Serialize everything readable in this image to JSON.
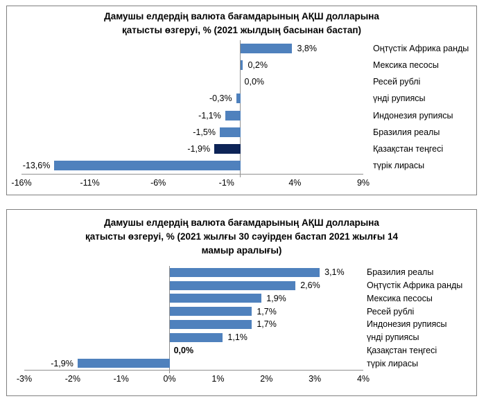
{
  "colors": {
    "bar": "#4f81bd",
    "highlight": "#0d2457",
    "axis": "#8f8f8f",
    "border": "#7f7f7f",
    "text": "#000000"
  },
  "chart_data": [
    {
      "type": "bar",
      "orientation": "horizontal",
      "title": "Дамушы елдердің валюта бағамдарының АҚШ долларына қатысты өзгеруі, % (2021 жылдың басынан бастап)",
      "title_lines": [
        "Дамушы елдердің валюта бағамдарының АҚШ долларына",
        "қатысты өзгеруі, % (2021 жылдың басынан бастап)"
      ],
      "categories": [
        "Оңтүстік Африка ранды",
        "Мексика песосы",
        "Ресей рублі",
        "үнді рупиясы",
        "Индонезия рупиясы",
        "Бразилия реалы",
        "Қазақстан теңгесі",
        "түрік лирасы"
      ],
      "values": [
        3.8,
        0.2,
        0.0,
        -0.3,
        -1.1,
        -1.5,
        -1.9,
        -13.6
      ],
      "value_labels": [
        "3,8%",
        "0,2%",
        "0,0%",
        "-0,3%",
        "-1,1%",
        "-1,5%",
        "-1,9%",
        "-13,6%"
      ],
      "highlight_index": 6,
      "bold_label_index": null,
      "xlim": [
        -16,
        9
      ],
      "x_tick_values": [
        -16,
        -11,
        -6,
        -1,
        4,
        9
      ],
      "x_ticks": [
        "-16%",
        "-11%",
        "-6%",
        "-1%",
        "4%",
        "9%"
      ],
      "grid": false,
      "legend": false
    },
    {
      "type": "bar",
      "orientation": "horizontal",
      "title": "Дамушы елдердің валюта бағамдарының АҚШ долларына қатысты өзгеруі, % (2021 жылғы 30 сәуірден бастап 2021 жылғы 14 мамыр аралығы)",
      "title_lines": [
        "Дамушы елдердің валюта бағамдарының АҚШ долларына",
        "қатысты өзгеруі, % (2021 жылғы 30 сәуірден бастап 2021 жылғы 14",
        "мамыр аралығы)"
      ],
      "categories": [
        "Бразилия реалы",
        "Оңтүстік Африка ранды",
        "Мексика песосы",
        "Ресей рублі",
        "Индонезия рупиясы",
        "үнді рупиясы",
        "Қазақстан теңгесі",
        "түрік лирасы"
      ],
      "values": [
        3.1,
        2.6,
        1.9,
        1.7,
        1.7,
        1.1,
        0.0,
        -1.9
      ],
      "value_labels": [
        "3,1%",
        "2,6%",
        "1,9%",
        "1,7%",
        "1,7%",
        "1,1%",
        "0,0%",
        "-1,9%"
      ],
      "highlight_index": null,
      "bold_label_index": 6,
      "xlim": [
        -3,
        4
      ],
      "x_tick_values": [
        -3,
        -2,
        -1,
        0,
        1,
        2,
        3,
        4
      ],
      "x_ticks": [
        "-3%",
        "-2%",
        "-1%",
        "0%",
        "1%",
        "2%",
        "3%",
        "4%"
      ],
      "grid": false,
      "legend": false
    }
  ]
}
